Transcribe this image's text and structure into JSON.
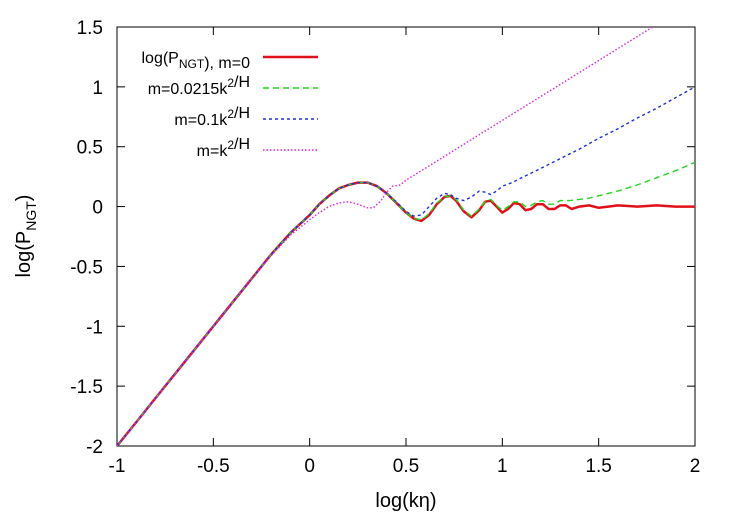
{
  "chart_data": {
    "type": "line",
    "xlabel": {
      "main": "log(k",
      "greek": "η",
      "close": ")"
    },
    "ylabel": {
      "main": "log(P",
      "sub": "NGT",
      "close": ")"
    },
    "xlim": [
      -1,
      2
    ],
    "ylim": [
      -2,
      1.5
    ],
    "x_ticks": [
      "-1",
      "-0.5",
      "0",
      "0.5",
      "1",
      "1.5",
      "2"
    ],
    "y_ticks": [
      "-2",
      "-1.5",
      "-1",
      "-0.5",
      "0",
      "0.5",
      "1",
      "1.5"
    ],
    "grid": false,
    "legend_position": "top-left",
    "series": [
      {
        "name": "log(P_NGT), m=0",
        "label_parts": [
          {
            "t": "log(P"
          },
          {
            "t": "NGT",
            "sub": true
          },
          {
            "t": "), m=0"
          }
        ],
        "color": "#e0101a",
        "dash": "solid",
        "points": [
          [
            -1,
            -2
          ],
          [
            -0.9,
            -1.8
          ],
          [
            -0.8,
            -1.6
          ],
          [
            -0.7,
            -1.4
          ],
          [
            -0.6,
            -1.2
          ],
          [
            -0.5,
            -1.0
          ],
          [
            -0.4,
            -0.8
          ],
          [
            -0.3,
            -0.6
          ],
          [
            -0.2,
            -0.4
          ],
          [
            -0.1,
            -0.22
          ],
          [
            0,
            -0.07
          ],
          [
            0.05,
            0.02
          ],
          [
            0.1,
            0.09
          ],
          [
            0.15,
            0.15
          ],
          [
            0.2,
            0.18
          ],
          [
            0.25,
            0.2
          ],
          [
            0.3,
            0.2
          ],
          [
            0.35,
            0.17
          ],
          [
            0.4,
            0.11
          ],
          [
            0.45,
            0.03
          ],
          [
            0.5,
            -0.05
          ],
          [
            0.54,
            -0.1
          ],
          [
            0.58,
            -0.12
          ],
          [
            0.62,
            -0.07
          ],
          [
            0.66,
            0.02
          ],
          [
            0.7,
            0.08
          ],
          [
            0.73,
            0.09
          ],
          [
            0.76,
            0.05
          ],
          [
            0.8,
            -0.04
          ],
          [
            0.84,
            -0.09
          ],
          [
            0.88,
            -0.03
          ],
          [
            0.91,
            0.04
          ],
          [
            0.94,
            0.05
          ],
          [
            0.97,
            0.0
          ],
          [
            1.0,
            -0.05
          ],
          [
            1.03,
            -0.02
          ],
          [
            1.06,
            0.03
          ],
          [
            1.09,
            0.02
          ],
          [
            1.12,
            -0.03
          ],
          [
            1.15,
            -0.02
          ],
          [
            1.18,
            0.02
          ],
          [
            1.21,
            0.02
          ],
          [
            1.24,
            -0.02
          ],
          [
            1.27,
            -0.02
          ],
          [
            1.3,
            0.01
          ],
          [
            1.33,
            0.01
          ],
          [
            1.36,
            -0.02
          ],
          [
            1.4,
            0.0
          ],
          [
            1.45,
            0.01
          ],
          [
            1.5,
            -0.01
          ],
          [
            1.55,
            0.0
          ],
          [
            1.6,
            0.01
          ],
          [
            1.7,
            0.0
          ],
          [
            1.8,
            0.01
          ],
          [
            1.9,
            0.0
          ],
          [
            2.0,
            0.0
          ]
        ]
      },
      {
        "name": "m=0.0215k^2/H",
        "label_parts": [
          {
            "t": "m=0.0215k"
          },
          {
            "t": "2",
            "sup": true
          },
          {
            "t": "/H"
          }
        ],
        "color": "#1ed81e",
        "dash": "6,4",
        "points": [
          [
            -1,
            -2
          ],
          [
            -0.9,
            -1.8
          ],
          [
            -0.8,
            -1.6
          ],
          [
            -0.7,
            -1.4
          ],
          [
            -0.6,
            -1.2
          ],
          [
            -0.5,
            -1.0
          ],
          [
            -0.4,
            -0.8
          ],
          [
            -0.3,
            -0.6
          ],
          [
            -0.2,
            -0.4
          ],
          [
            -0.1,
            -0.22
          ],
          [
            0,
            -0.07
          ],
          [
            0.05,
            0.02
          ],
          [
            0.1,
            0.09
          ],
          [
            0.15,
            0.15
          ],
          [
            0.2,
            0.18
          ],
          [
            0.25,
            0.2
          ],
          [
            0.3,
            0.2
          ],
          [
            0.35,
            0.17
          ],
          [
            0.4,
            0.11
          ],
          [
            0.45,
            0.03
          ],
          [
            0.5,
            -0.05
          ],
          [
            0.54,
            -0.1
          ],
          [
            0.58,
            -0.11
          ],
          [
            0.62,
            -0.06
          ],
          [
            0.66,
            0.03
          ],
          [
            0.7,
            0.08
          ],
          [
            0.73,
            0.09
          ],
          [
            0.76,
            0.06
          ],
          [
            0.8,
            -0.03
          ],
          [
            0.84,
            -0.08
          ],
          [
            0.88,
            -0.02
          ],
          [
            0.91,
            0.04
          ],
          [
            0.94,
            0.06
          ],
          [
            0.97,
            0.01
          ],
          [
            1.0,
            -0.03
          ],
          [
            1.03,
            0.0
          ],
          [
            1.06,
            0.04
          ],
          [
            1.09,
            0.04
          ],
          [
            1.12,
            0.0
          ],
          [
            1.15,
            0.01
          ],
          [
            1.18,
            0.04
          ],
          [
            1.21,
            0.05
          ],
          [
            1.24,
            0.02
          ],
          [
            1.27,
            0.02
          ],
          [
            1.3,
            0.05
          ],
          [
            1.35,
            0.05
          ],
          [
            1.4,
            0.06
          ],
          [
            1.45,
            0.07
          ],
          [
            1.5,
            0.09
          ],
          [
            1.6,
            0.13
          ],
          [
            1.7,
            0.18
          ],
          [
            1.8,
            0.24
          ],
          [
            1.9,
            0.3
          ],
          [
            2.0,
            0.37
          ]
        ]
      },
      {
        "name": "m=0.1k^2/H",
        "label_parts": [
          {
            "t": "m=0.1k"
          },
          {
            "t": "2",
            "sup": true
          },
          {
            "t": "/H"
          }
        ],
        "color": "#1f2fd8",
        "dash": "3,3",
        "points": [
          [
            -1,
            -2
          ],
          [
            -0.9,
            -1.8
          ],
          [
            -0.8,
            -1.6
          ],
          [
            -0.7,
            -1.4
          ],
          [
            -0.6,
            -1.2
          ],
          [
            -0.5,
            -1.0
          ],
          [
            -0.4,
            -0.8
          ],
          [
            -0.3,
            -0.6
          ],
          [
            -0.2,
            -0.4
          ],
          [
            -0.1,
            -0.22
          ],
          [
            0,
            -0.07
          ],
          [
            0.05,
            0.02
          ],
          [
            0.1,
            0.09
          ],
          [
            0.15,
            0.15
          ],
          [
            0.2,
            0.18
          ],
          [
            0.25,
            0.2
          ],
          [
            0.3,
            0.2
          ],
          [
            0.35,
            0.17
          ],
          [
            0.4,
            0.11
          ],
          [
            0.45,
            0.04
          ],
          [
            0.5,
            -0.04
          ],
          [
            0.54,
            -0.08
          ],
          [
            0.58,
            -0.07
          ],
          [
            0.62,
            0.0
          ],
          [
            0.66,
            0.07
          ],
          [
            0.7,
            0.11
          ],
          [
            0.73,
            0.1
          ],
          [
            0.76,
            0.07
          ],
          [
            0.8,
            0.05
          ],
          [
            0.84,
            0.08
          ],
          [
            0.88,
            0.13
          ],
          [
            0.91,
            0.12
          ],
          [
            0.94,
            0.1
          ],
          [
            0.97,
            0.13
          ],
          [
            1.0,
            0.17
          ],
          [
            1.05,
            0.2
          ],
          [
            1.1,
            0.24
          ],
          [
            1.2,
            0.32
          ],
          [
            1.3,
            0.4
          ],
          [
            1.4,
            0.48
          ],
          [
            1.5,
            0.57
          ],
          [
            1.6,
            0.65
          ],
          [
            1.7,
            0.74
          ],
          [
            1.8,
            0.82
          ],
          [
            1.9,
            0.91
          ],
          [
            2.0,
            1.0
          ]
        ]
      },
      {
        "name": "m=k^2/H",
        "label_parts": [
          {
            "t": "m=k"
          },
          {
            "t": "2",
            "sup": true
          },
          {
            "t": "/H"
          }
        ],
        "color": "#e020e0",
        "dash": "1.5,2",
        "points": [
          [
            -1,
            -2
          ],
          [
            -0.9,
            -1.8
          ],
          [
            -0.8,
            -1.6
          ],
          [
            -0.7,
            -1.4
          ],
          [
            -0.6,
            -1.2
          ],
          [
            -0.5,
            -1.0
          ],
          [
            -0.4,
            -0.8
          ],
          [
            -0.3,
            -0.6
          ],
          [
            -0.2,
            -0.41
          ],
          [
            -0.1,
            -0.24
          ],
          [
            0,
            -0.11
          ],
          [
            0.05,
            -0.05
          ],
          [
            0.1,
            0.0
          ],
          [
            0.15,
            0.03
          ],
          [
            0.2,
            0.04
          ],
          [
            0.25,
            0.02
          ],
          [
            0.3,
            -0.01
          ],
          [
            0.33,
            -0.01
          ],
          [
            0.37,
            0.05
          ],
          [
            0.4,
            0.12
          ],
          [
            0.43,
            0.17
          ],
          [
            0.47,
            0.18
          ],
          [
            0.5,
            0.22
          ],
          [
            0.6,
            0.32
          ],
          [
            0.7,
            0.42
          ],
          [
            0.8,
            0.52
          ],
          [
            0.9,
            0.62
          ],
          [
            1.0,
            0.72
          ],
          [
            1.1,
            0.82
          ],
          [
            1.2,
            0.92
          ],
          [
            1.3,
            1.02
          ],
          [
            1.4,
            1.12
          ],
          [
            1.5,
            1.22
          ],
          [
            1.6,
            1.32
          ],
          [
            1.7,
            1.42
          ],
          [
            1.8,
            1.52
          ],
          [
            1.82,
            1.54
          ]
        ]
      }
    ]
  }
}
